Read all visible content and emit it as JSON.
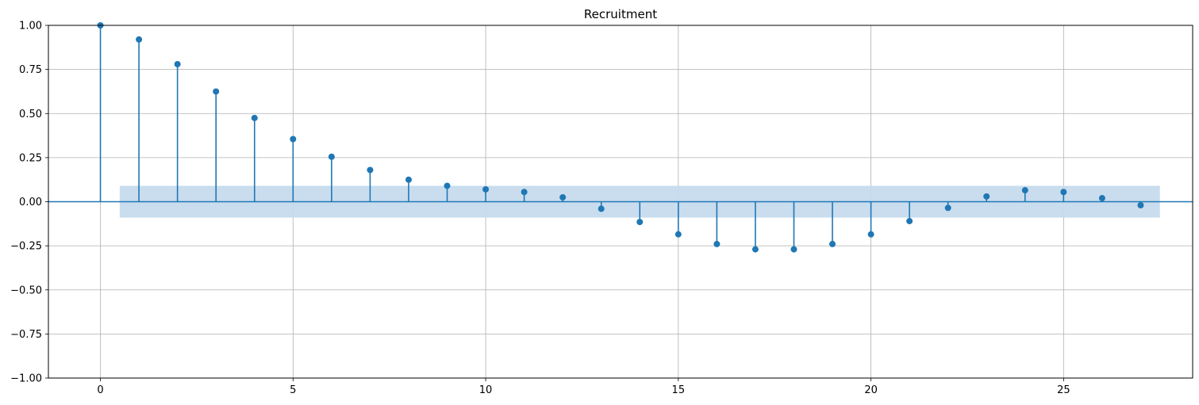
{
  "chart_data": {
    "type": "stem",
    "title": "Recruitment",
    "xlabel": "",
    "ylabel": "",
    "xlim": [
      -1.35,
      28.35
    ],
    "ylim": [
      -1.0,
      1.0
    ],
    "xticks": [
      0,
      5,
      10,
      15,
      20,
      25
    ],
    "yticks": [
      -1.0,
      -0.75,
      -0.5,
      -0.25,
      0.0,
      0.25,
      0.5,
      0.75,
      1.0
    ],
    "xtick_labels": [
      "0",
      "5",
      "10",
      "15",
      "20",
      "25"
    ],
    "ytick_labels": [
      "−1.00",
      "−0.75",
      "−0.50",
      "−0.25",
      "0.00",
      "0.25",
      "0.50",
      "0.75",
      "1.00"
    ],
    "grid": true,
    "lags": [
      0,
      1,
      2,
      3,
      4,
      5,
      6,
      7,
      8,
      9,
      10,
      11,
      12,
      13,
      14,
      15,
      16,
      17,
      18,
      19,
      20,
      21,
      22,
      23,
      24,
      25,
      26,
      27
    ],
    "values": [
      1.0,
      0.92,
      0.78,
      0.625,
      0.475,
      0.355,
      0.255,
      0.18,
      0.125,
      0.09,
      0.07,
      0.055,
      0.025,
      -0.04,
      -0.115,
      -0.185,
      -0.24,
      -0.27,
      -0.27,
      -0.24,
      -0.185,
      -0.11,
      -0.035,
      0.03,
      0.065,
      0.055,
      0.02,
      -0.02
    ],
    "confidence_band": {
      "x_start": 0.5,
      "x_end": 27.5,
      "upper": 0.09,
      "lower": -0.09
    },
    "colors": {
      "stem": "#1f77b4",
      "band": "#c6dbee",
      "grid": "#b0b0b0",
      "zero_line": "#1f77b4"
    }
  }
}
